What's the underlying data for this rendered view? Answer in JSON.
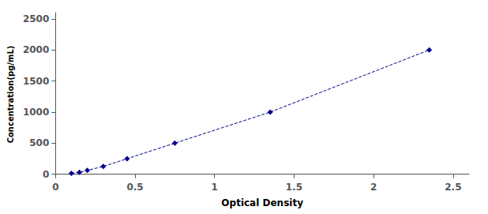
{
  "chart_data": {
    "type": "line",
    "xlabel": "Optical Density",
    "ylabel": "Concentration(pg/mL)",
    "x": [
      0.1,
      0.15,
      0.2,
      0.3,
      0.45,
      0.75,
      1.35,
      2.35
    ],
    "values": [
      15.6,
      31.2,
      62.5,
      125,
      250,
      500,
      1000,
      2000
    ],
    "color": "#00008B",
    "marker": "diamond",
    "line_style": "dashed",
    "xlim": [
      0.0,
      2.6
    ],
    "ylim": [
      -30,
      2600
    ],
    "xticks": [
      0,
      0.5,
      1,
      1.5,
      2,
      2.5
    ],
    "yticks": [
      0,
      500,
      1000,
      1500,
      2000,
      2500
    ],
    "grid": false
  }
}
